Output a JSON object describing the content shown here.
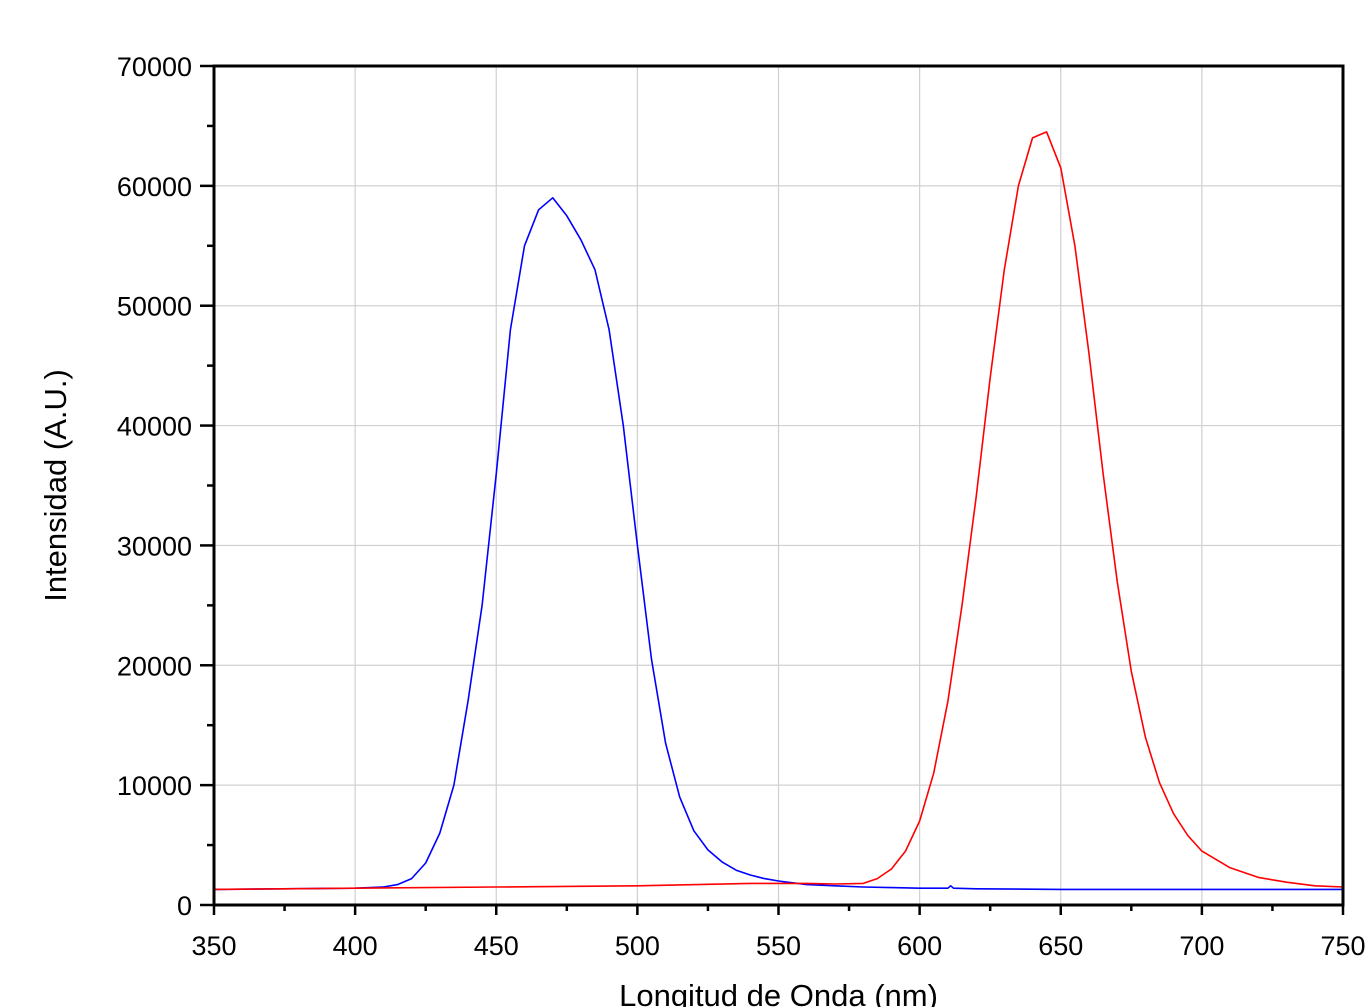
{
  "chart_data": {
    "type": "line",
    "title": "",
    "xlabel": "Longitud de Onda (nm)",
    "ylabel": "Intensidad (A.U.)",
    "xlim": [
      350,
      750
    ],
    "ylim": [
      0,
      70000
    ],
    "x_ticks": [
      350,
      400,
      450,
      500,
      550,
      600,
      650,
      700,
      750
    ],
    "y_ticks": [
      0,
      10000,
      20000,
      30000,
      40000,
      50000,
      60000,
      70000
    ],
    "grid": true,
    "legend": "none",
    "series": [
      {
        "color": "#0000ff",
        "x": [
          350,
          400,
          410,
          415,
          420,
          425,
          430,
          435,
          440,
          445,
          450,
          455,
          460,
          465,
          470,
          475,
          480,
          485,
          490,
          495,
          500,
          505,
          510,
          515,
          520,
          525,
          530,
          535,
          540,
          545,
          550,
          555,
          560,
          570,
          580,
          590,
          600,
          610,
          611,
          612,
          620,
          650,
          700,
          750
        ],
        "y": [
          1300,
          1400,
          1500,
          1700,
          2200,
          3500,
          6000,
          10000,
          17000,
          25000,
          36000,
          48000,
          55000,
          58000,
          59000,
          57500,
          55500,
          53000,
          48000,
          40000,
          30000,
          20500,
          13500,
          9000,
          6200,
          4600,
          3600,
          2900,
          2500,
          2200,
          2000,
          1850,
          1700,
          1600,
          1500,
          1450,
          1400,
          1400,
          1600,
          1400,
          1350,
          1300,
          1300,
          1300
        ]
      },
      {
        "color": "#ff0000",
        "x": [
          350,
          400,
          450,
          500,
          540,
          560,
          570,
          580,
          585,
          590,
          595,
          600,
          605,
          610,
          615,
          620,
          625,
          630,
          635,
          640,
          645,
          650,
          655,
          660,
          665,
          670,
          675,
          680,
          685,
          690,
          695,
          700,
          710,
          720,
          730,
          740,
          750
        ],
        "y": [
          1300,
          1400,
          1500,
          1600,
          1800,
          1800,
          1750,
          1800,
          2200,
          3000,
          4500,
          7000,
          11000,
          17000,
          25000,
          34000,
          44000,
          53000,
          60000,
          64000,
          64500,
          61500,
          55000,
          46000,
          36000,
          27000,
          19500,
          14000,
          10200,
          7600,
          5800,
          4500,
          3100,
          2300,
          1900,
          1600,
          1500
        ]
      }
    ]
  }
}
